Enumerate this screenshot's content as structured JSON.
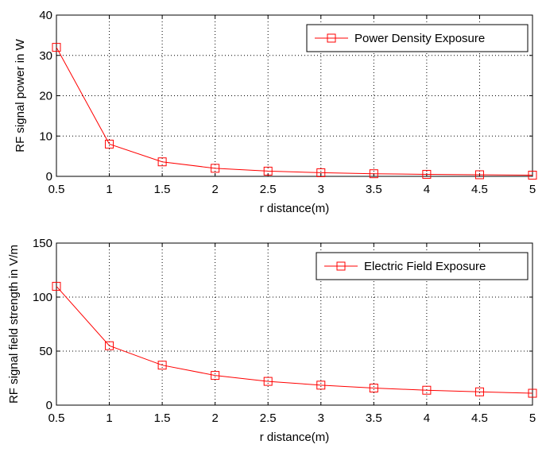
{
  "chart_data": [
    {
      "type": "line",
      "title": "",
      "xlabel": "r distance(m)",
      "ylabel": "RF signal power in W",
      "xlim": [
        0.5,
        5
      ],
      "ylim": [
        0,
        40
      ],
      "xticks": [
        0.5,
        1,
        1.5,
        2,
        2.5,
        3,
        3.5,
        4,
        4.5,
        5
      ],
      "xtick_labels": [
        "0.5",
        "1",
        "1.5",
        "2",
        "2.5",
        "3",
        "3.5",
        "4",
        "4.5",
        "5"
      ],
      "yticks": [
        0,
        10,
        20,
        30,
        40
      ],
      "ytick_labels": [
        "0",
        "10",
        "20",
        "30",
        "40"
      ],
      "grid": true,
      "legend_position": "top-right",
      "series": [
        {
          "name": "Power Density Exposure",
          "color": "#ff0000",
          "marker": "square",
          "x": [
            0.5,
            1,
            1.5,
            2,
            2.5,
            3,
            3.5,
            4,
            4.5,
            5
          ],
          "values": [
            32,
            8,
            3.6,
            2.0,
            1.3,
            0.9,
            0.65,
            0.5,
            0.4,
            0.3
          ]
        }
      ]
    },
    {
      "type": "line",
      "title": "",
      "xlabel": "r distance(m)",
      "ylabel": "RF signal field strength in V/m",
      "xlim": [
        0.5,
        5
      ],
      "ylim": [
        0,
        150
      ],
      "xticks": [
        0.5,
        1,
        1.5,
        2,
        2.5,
        3,
        3.5,
        4,
        4.5,
        5
      ],
      "xtick_labels": [
        "0.5",
        "1",
        "1.5",
        "2",
        "2.5",
        "3",
        "3.5",
        "4",
        "4.5",
        "5"
      ],
      "yticks": [
        0,
        50,
        100,
        150
      ],
      "ytick_labels": [
        "0",
        "50",
        "100",
        "150"
      ],
      "grid": true,
      "legend_position": "top-right",
      "series": [
        {
          "name": "Electric Field Exposure",
          "color": "#ff0000",
          "marker": "square",
          "x": [
            0.5,
            1,
            1.5,
            2,
            2.5,
            3,
            3.5,
            4,
            4.5,
            5
          ],
          "values": [
            110,
            55,
            37,
            27.5,
            22,
            18.5,
            15.8,
            13.8,
            12.3,
            11
          ]
        }
      ]
    }
  ]
}
